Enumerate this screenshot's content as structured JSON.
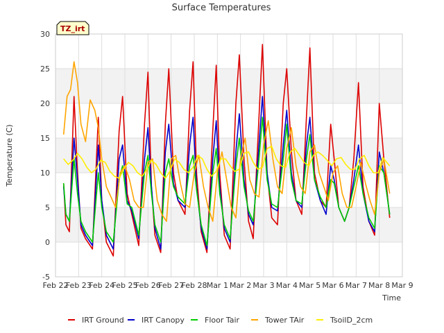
{
  "chart_data": {
    "type": "line",
    "title": "Surface Temperatures",
    "xlabel": "Time",
    "ylabel": "Temperature (C)",
    "annotation": "TZ_irt",
    "xlim": [
      0,
      15
    ],
    "ylim": [
      -5,
      30
    ],
    "x_ticks": [
      {
        "label": "Feb 22",
        "value": 0
      },
      {
        "label": "Feb 23",
        "value": 1
      },
      {
        "label": "Feb 24",
        "value": 2
      },
      {
        "label": "Feb 25",
        "value": 3
      },
      {
        "label": "Feb 26",
        "value": 4
      },
      {
        "label": "Feb 27",
        "value": 5
      },
      {
        "label": "Feb 28",
        "value": 6
      },
      {
        "label": "Mar 1",
        "value": 7
      },
      {
        "label": "Mar 2",
        "value": 8
      },
      {
        "label": "Mar 3",
        "value": 9
      },
      {
        "label": "Mar 4",
        "value": 10
      },
      {
        "label": "Mar 5",
        "value": 11
      },
      {
        "label": "Mar 6",
        "value": 12
      },
      {
        "label": "Mar 7",
        "value": 13
      },
      {
        "label": "Mar 8",
        "value": 14
      },
      {
        "label": "Mar 9",
        "value": 15
      }
    ],
    "y_ticks": [
      -5,
      0,
      5,
      10,
      15,
      20,
      25,
      30
    ],
    "grid": true,
    "banded_background": true,
    "legend_position": "bottom",
    "series": [
      {
        "name": "IRT Ground",
        "color": "#dd0000",
        "x": [
          0.35,
          0.45,
          0.6,
          0.8,
          0.95,
          1.1,
          1.3,
          1.6,
          1.85,
          2.0,
          2.2,
          2.5,
          2.75,
          2.9,
          3.1,
          3.3,
          3.6,
          3.85,
          4.0,
          4.15,
          4.3,
          4.55,
          4.75,
          4.9,
          5.1,
          5.3,
          5.6,
          5.8,
          5.95,
          6.1,
          6.3,
          6.55,
          6.8,
          6.95,
          7.1,
          7.3,
          7.55,
          7.8,
          7.95,
          8.15,
          8.35,
          8.55,
          8.8,
          8.95,
          9.15,
          9.35,
          9.6,
          9.85,
          10.0,
          10.2,
          10.4,
          10.65,
          10.85,
          11.0,
          11.2,
          11.45,
          11.7,
          11.9,
          12.05,
          12.25,
          12.5,
          12.7,
          12.9,
          13.1,
          13.3,
          13.55,
          13.8,
          14.0,
          14.2,
          14.45
        ],
        "y": [
          8.5,
          2.5,
          1.5,
          21.0,
          10.0,
          2.0,
          0.5,
          -1.0,
          18.0,
          6.0,
          0.0,
          -2.0,
          16.0,
          21.0,
          7.0,
          4.0,
          -0.5,
          17.0,
          24.5,
          8.0,
          1.0,
          -1.5,
          17.0,
          25.0,
          10.0,
          6.0,
          4.0,
          19.0,
          26.0,
          10.0,
          1.5,
          -1.5,
          16.0,
          25.5,
          10.0,
          1.0,
          -1.0,
          20.0,
          27.0,
          12.0,
          3.0,
          0.5,
          18.0,
          28.5,
          10.0,
          3.5,
          2.5,
          20.0,
          25.0,
          13.0,
          6.0,
          4.0,
          18.0,
          28.0,
          10.0,
          6.0,
          5.0,
          17.0,
          12.0,
          5.0,
          3.0,
          5.0,
          12.0,
          23.0,
          8.0,
          3.0,
          1.0,
          20.0,
          12.0,
          3.5
        ]
      },
      {
        "name": "IRT Canopy",
        "color": "#0000cc",
        "x": [
          0.35,
          0.45,
          0.6,
          0.8,
          0.95,
          1.1,
          1.3,
          1.6,
          1.85,
          2.0,
          2.2,
          2.5,
          2.75,
          2.9,
          3.1,
          3.3,
          3.6,
          3.85,
          4.0,
          4.15,
          4.3,
          4.55,
          4.75,
          4.9,
          5.1,
          5.3,
          5.6,
          5.8,
          5.95,
          6.1,
          6.3,
          6.55,
          6.8,
          6.95,
          7.1,
          7.3,
          7.55,
          7.8,
          7.95,
          8.15,
          8.35,
          8.55,
          8.8,
          8.95,
          9.15,
          9.35,
          9.6,
          9.85,
          10.0,
          10.2,
          10.4,
          10.65,
          10.85,
          11.0,
          11.2,
          11.45,
          11.7,
          11.9,
          12.05,
          12.25,
          12.5,
          12.7,
          12.9,
          13.1,
          13.3,
          13.55,
          13.8,
          14.0,
          14.2,
          14.45
        ],
        "y": [
          8.0,
          4.0,
          3.0,
          15.0,
          9.0,
          2.5,
          1.0,
          -0.5,
          14.0,
          6.0,
          1.0,
          -1.0,
          12.0,
          14.0,
          6.0,
          4.5,
          0.5,
          12.0,
          16.5,
          8.0,
          2.0,
          -1.0,
          13.0,
          17.0,
          8.5,
          6.0,
          5.0,
          14.0,
          18.0,
          8.0,
          2.0,
          -1.0,
          12.0,
          17.5,
          8.0,
          2.0,
          0.0,
          13.0,
          18.5,
          9.0,
          4.0,
          2.5,
          14.0,
          21.0,
          10.0,
          5.0,
          4.5,
          14.0,
          19.0,
          10.0,
          6.0,
          5.0,
          14.0,
          18.0,
          9.0,
          6.0,
          4.0,
          11.0,
          9.0,
          5.0,
          3.0,
          5.0,
          9.0,
          14.0,
          7.0,
          3.0,
          1.5,
          13.0,
          10.0,
          4.0
        ]
      },
      {
        "name": "Floor Tair",
        "color": "#00cc00",
        "x": [
          0.35,
          0.45,
          0.6,
          0.8,
          0.95,
          1.1,
          1.3,
          1.6,
          1.85,
          2.0,
          2.2,
          2.5,
          2.75,
          2.9,
          3.1,
          3.3,
          3.6,
          3.85,
          4.0,
          4.15,
          4.3,
          4.55,
          4.75,
          4.9,
          5.1,
          5.3,
          5.6,
          5.8,
          5.95,
          6.1,
          6.3,
          6.55,
          6.8,
          6.95,
          7.1,
          7.3,
          7.55,
          7.8,
          7.95,
          8.15,
          8.35,
          8.55,
          8.8,
          8.95,
          9.15,
          9.35,
          9.6,
          9.85,
          10.0,
          10.2,
          10.4,
          10.65,
          10.85,
          11.0,
          11.2,
          11.45,
          11.7,
          11.9,
          12.05,
          12.25,
          12.5,
          12.7,
          12.9,
          13.1,
          13.3,
          13.55,
          13.8,
          14.0,
          14.2,
          14.45
        ],
        "y": [
          8.5,
          4.0,
          3.0,
          12.0,
          7.0,
          3.0,
          1.5,
          0.0,
          10.0,
          5.0,
          1.5,
          0.0,
          9.0,
          11.0,
          5.5,
          5.0,
          1.0,
          10.0,
          12.5,
          7.0,
          2.5,
          0.0,
          10.0,
          12.0,
          8.0,
          6.5,
          5.5,
          11.0,
          12.5,
          7.5,
          2.5,
          -0.5,
          10.0,
          13.5,
          7.0,
          2.5,
          0.5,
          11.0,
          15.0,
          8.0,
          4.5,
          3.0,
          12.0,
          18.0,
          9.0,
          5.5,
          5.0,
          12.0,
          17.0,
          9.0,
          6.0,
          5.5,
          12.0,
          15.5,
          9.0,
          6.5,
          5.0,
          9.0,
          8.5,
          5.0,
          3.0,
          5.0,
          8.0,
          11.0,
          7.0,
          3.5,
          2.0,
          11.0,
          10.0,
          4.0
        ]
      },
      {
        "name": "Tower TAir",
        "color": "#ffa500",
        "x": [
          0.35,
          0.5,
          0.65,
          0.8,
          0.95,
          1.1,
          1.3,
          1.5,
          1.7,
          1.85,
          2.0,
          2.2,
          2.4,
          2.6,
          2.8,
          3.0,
          3.2,
          3.4,
          3.6,
          3.8,
          4.0,
          4.2,
          4.4,
          4.6,
          4.8,
          5.0,
          5.2,
          5.4,
          5.6,
          5.8,
          6.0,
          6.2,
          6.4,
          6.6,
          6.8,
          7.0,
          7.2,
          7.4,
          7.6,
          7.8,
          8.0,
          8.2,
          8.4,
          8.6,
          8.8,
          9.0,
          9.2,
          9.4,
          9.6,
          9.8,
          10.0,
          10.2,
          10.4,
          10.6,
          10.8,
          11.0,
          11.2,
          11.4,
          11.6,
          11.8,
          12.0,
          12.2,
          12.4,
          12.6,
          12.8,
          13.0,
          13.2,
          13.4,
          13.6,
          13.8,
          14.0,
          14.2,
          14.45
        ],
        "y": [
          15.5,
          21.0,
          22.0,
          26.0,
          23.0,
          17.0,
          14.5,
          20.5,
          19.0,
          16.5,
          12.0,
          8.0,
          6.5,
          5.0,
          10.0,
          11.0,
          9.0,
          6.0,
          5.0,
          5.0,
          11.5,
          12.0,
          6.0,
          4.0,
          3.0,
          12.0,
          12.5,
          8.5,
          5.5,
          5.0,
          10.0,
          12.5,
          8.0,
          5.0,
          3.0,
          10.0,
          13.0,
          9.0,
          5.0,
          3.5,
          12.0,
          15.0,
          9.0,
          7.0,
          6.5,
          14.0,
          17.5,
          12.0,
          8.0,
          7.0,
          13.5,
          16.5,
          11.0,
          8.0,
          7.0,
          13.0,
          14.0,
          10.0,
          8.0,
          6.0,
          10.0,
          11.0,
          7.0,
          5.0,
          5.0,
          8.0,
          11.5,
          8.5,
          6.0,
          4.0,
          10.0,
          12.0,
          7.0
        ]
      },
      {
        "name": "TsoilD_2cm",
        "color": "#ffee00",
        "x": [
          0.35,
          0.55,
          0.75,
          0.95,
          1.15,
          1.35,
          1.55,
          1.75,
          1.95,
          2.15,
          2.35,
          2.55,
          2.75,
          2.95,
          3.15,
          3.35,
          3.55,
          3.75,
          3.95,
          4.15,
          4.35,
          4.55,
          4.75,
          4.95,
          5.15,
          5.35,
          5.55,
          5.75,
          5.95,
          6.15,
          6.35,
          6.55,
          6.75,
          6.95,
          7.15,
          7.35,
          7.55,
          7.75,
          7.95,
          8.15,
          8.35,
          8.55,
          8.75,
          8.95,
          9.15,
          9.35,
          9.55,
          9.75,
          9.95,
          10.15,
          10.35,
          10.55,
          10.75,
          10.95,
          11.15,
          11.35,
          11.55,
          11.75,
          11.95,
          12.15,
          12.35,
          12.55,
          12.75,
          12.95,
          13.15,
          13.35,
          13.55,
          13.75,
          13.95,
          14.15,
          14.45
        ],
        "y": [
          12.0,
          11.2,
          11.8,
          12.8,
          12.0,
          10.8,
          10.0,
          10.5,
          11.8,
          11.5,
          10.2,
          9.5,
          9.2,
          10.5,
          11.5,
          11.0,
          10.0,
          9.5,
          10.5,
          11.8,
          11.2,
          10.0,
          9.2,
          10.2,
          12.0,
          11.5,
          10.5,
          10.0,
          10.8,
          12.5,
          12.0,
          10.5,
          9.5,
          10.2,
          12.0,
          12.0,
          11.0,
          10.2,
          10.5,
          12.8,
          13.0,
          11.5,
          10.5,
          10.8,
          13.5,
          13.8,
          12.0,
          11.0,
          10.8,
          13.0,
          13.5,
          12.5,
          11.5,
          11.0,
          12.5,
          13.0,
          12.5,
          11.8,
          11.0,
          12.0,
          12.2,
          11.2,
          10.5,
          10.5,
          12.0,
          12.5,
          11.0,
          10.0,
          10.0,
          12.2,
          11.0
        ]
      }
    ]
  }
}
